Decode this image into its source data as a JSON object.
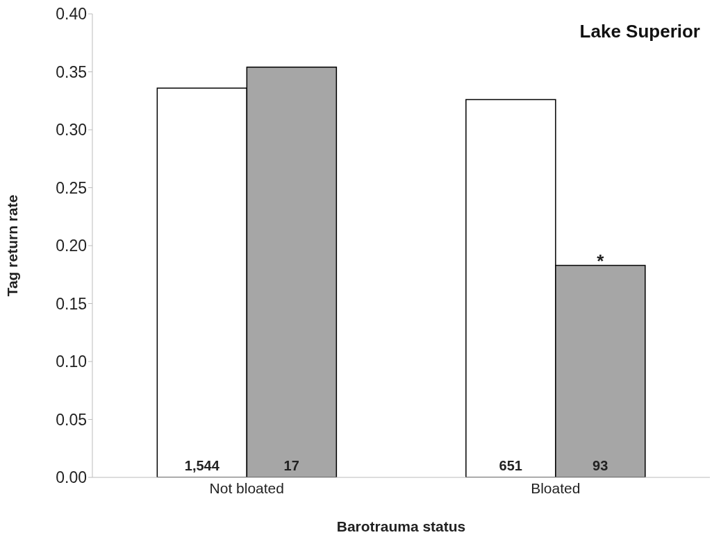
{
  "chart_data": {
    "type": "bar",
    "title": "Lake Superior",
    "xlabel": "Barotrauma status",
    "ylabel": "Tag return rate",
    "categories": [
      "Not bloated",
      "Bloated"
    ],
    "series": [
      {
        "color": "#ffffff",
        "values": [
          0.336,
          0.326
        ]
      },
      {
        "color": "#a6a6a6",
        "values": [
          0.354,
          0.183
        ]
      }
    ],
    "ylim": [
      0,
      0.4
    ],
    "yticks": [
      {
        "value": 0,
        "label": "0.00"
      },
      {
        "value": 0.05,
        "label": "0.05"
      },
      {
        "value": 0.1,
        "label": "0.10"
      },
      {
        "value": 0.15,
        "label": "0.15"
      },
      {
        "value": 0.2,
        "label": "0.20"
      },
      {
        "value": 0.25,
        "label": "0.25"
      },
      {
        "value": 0.3,
        "label": "0.30"
      },
      {
        "value": 0.35,
        "label": "0.35"
      },
      {
        "value": 0.4,
        "label": "0.40"
      }
    ],
    "grid": false,
    "legend": false,
    "annotations": [
      "1,544",
      "17",
      "651",
      "93",
      {
        "text": "*",
        "x": "Bloated",
        "y": 0.19
      }
    ]
  }
}
